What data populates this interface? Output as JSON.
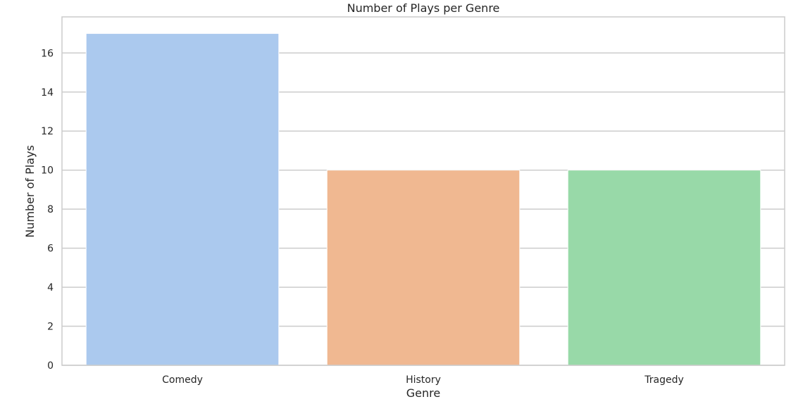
{
  "chart_data": {
    "type": "bar",
    "title": "Number of Plays per Genre",
    "xlabel": "Genre",
    "ylabel": "Number of Plays",
    "categories": [
      "Comedy",
      "History",
      "Tragedy"
    ],
    "values": [
      17,
      10,
      10
    ],
    "ylim": [
      0,
      17.85
    ],
    "yticks": [
      "0",
      "2",
      "4",
      "6",
      "8",
      "10",
      "12",
      "14",
      "16"
    ],
    "grid": true,
    "legend": "none",
    "colors": [
      "#abc9ee",
      "#f0b891",
      "#98d9a8"
    ],
    "frame_color": "#cccccc",
    "grid_color": "#cccccc"
  }
}
